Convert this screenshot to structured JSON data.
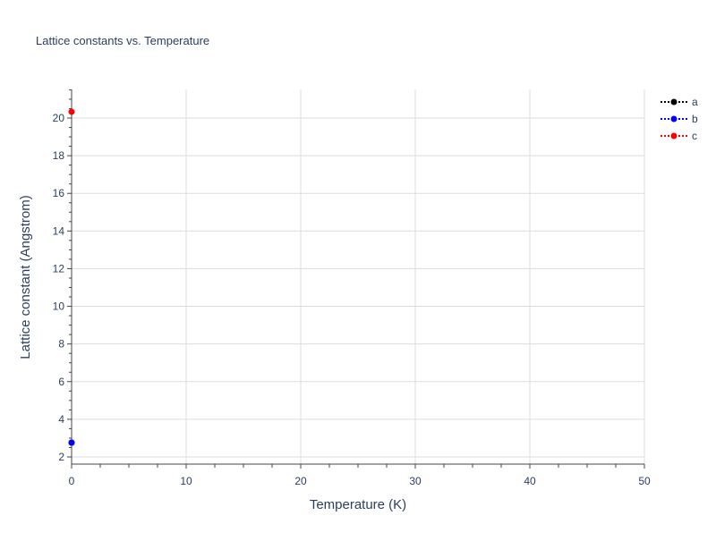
{
  "chart_data": {
    "type": "scatter",
    "title": "Lattice constants vs. Temperature",
    "xlabel": "Temperature (K)",
    "ylabel": "Lattice constant (Angstrom)",
    "xlim": [
      0,
      50
    ],
    "ylim": [
      1.62,
      21.52
    ],
    "xticks": [
      0,
      10,
      20,
      30,
      40,
      50
    ],
    "yticks": [
      2,
      4,
      6,
      8,
      10,
      12,
      14,
      16,
      18,
      20
    ],
    "grid": true,
    "legend_position": "top-right",
    "series": [
      {
        "name": "a",
        "color": "#000000",
        "x": [
          0
        ],
        "y": [
          2.76
        ]
      },
      {
        "name": "b",
        "color": "#0000ff",
        "x": [
          0
        ],
        "y": [
          2.76
        ]
      },
      {
        "name": "c",
        "color": "#ff0000",
        "x": [
          0
        ],
        "y": [
          20.33
        ]
      }
    ]
  }
}
